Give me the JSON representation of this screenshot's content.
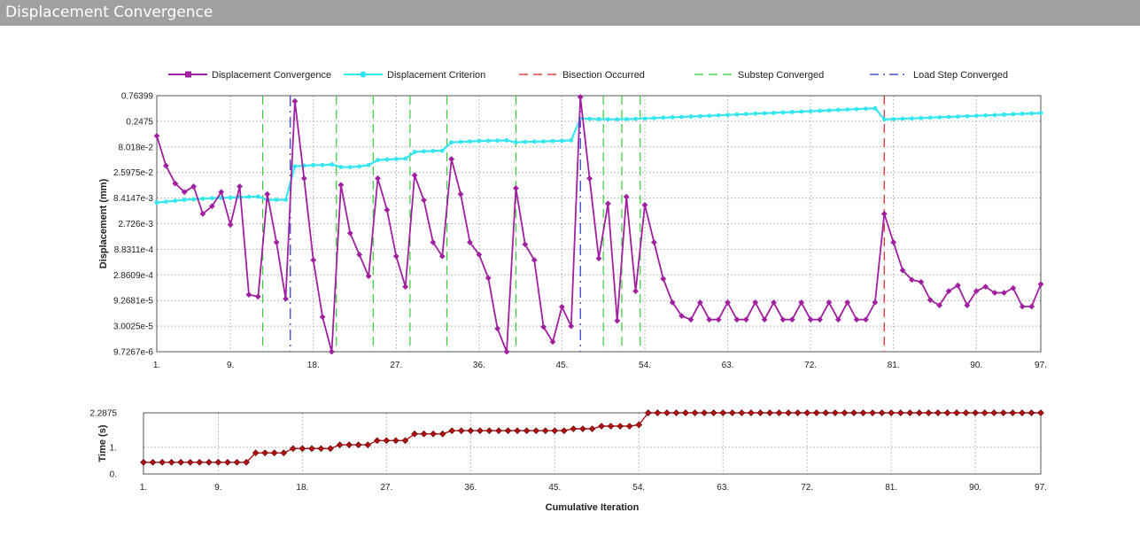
{
  "window": {
    "title": "Displacement Convergence"
  },
  "colors": {
    "convergence": "#a020a0",
    "criterion": "#33e6f0",
    "bisection": "#dd2222",
    "substep": "#33cc33",
    "loadstep": "#2233cc",
    "time": "#b01010"
  },
  "chart_data": [
    {
      "type": "line",
      "ylabel": "Displacement (mm)",
      "yscale": "log",
      "ylim": [
        9.7267e-06,
        0.76399
      ],
      "xlim": [
        1,
        97
      ],
      "yticks": [
        0.76399,
        0.2475,
        0.08018,
        0.025975,
        0.0084147,
        0.002726,
        0.00088311,
        0.00028609,
        9.2681e-05,
        3.0025e-05,
        9.7267e-06
      ],
      "ytick_labels": [
        "0.76399",
        "0.2475",
        "8.018e-2",
        "2.5975e-2",
        "8.4147e-3",
        "2.726e-3",
        "8.8311e-4",
        "2.8609e-4",
        "9.2681e-5",
        "3.0025e-5",
        "9.7267e-6"
      ],
      "xticks": [
        1,
        9,
        18,
        27,
        36,
        45,
        54,
        63,
        72,
        81,
        90,
        97
      ],
      "xtick_labels": [
        "1.",
        "9.",
        "18.",
        "27.",
        "36.",
        "45.",
        "54.",
        "63.",
        "72.",
        "81.",
        "90.",
        "97."
      ],
      "grid": true,
      "legend_position": "top",
      "legend": [
        "Displacement Convergence",
        "Displacement Criterion",
        "Bisection Occurred",
        "Substep Converged",
        "Load Step Converged"
      ],
      "series": [
        {
          "name": "Displacement Convergence",
          "x": [
            1,
            2,
            3,
            4,
            5,
            6,
            7,
            8,
            9,
            10,
            11,
            12,
            13,
            14,
            15,
            16,
            17,
            18,
            19,
            20,
            21,
            22,
            23,
            24,
            25,
            26,
            27,
            28,
            29,
            30,
            31,
            32,
            33,
            34,
            35,
            36,
            37,
            38,
            39,
            40,
            41,
            42,
            43,
            44,
            45,
            46,
            47,
            48,
            49,
            50,
            51,
            52,
            53,
            54,
            55,
            56,
            57,
            58,
            59,
            60,
            61,
            62,
            63,
            64,
            65,
            66,
            67,
            68,
            69,
            70,
            71,
            72,
            73,
            74,
            75,
            76,
            77,
            78,
            79,
            80,
            81,
            82,
            83,
            84,
            85,
            86,
            87,
            88,
            89,
            90,
            91,
            92,
            93,
            94,
            95,
            96,
            97
          ],
          "y": [
            0.13,
            0.035,
            0.016,
            0.011,
            0.014,
            0.0042,
            0.0059,
            0.011,
            0.0026,
            0.014,
            0.00012,
            0.00011,
            0.01,
            0.0012,
            0.0001,
            0.6,
            0.02,
            0.00055,
            4.5e-05,
            9.7e-06,
            0.015,
            0.0018,
            0.0007,
            0.00027,
            0.02,
            0.005,
            0.00065,
            0.00017,
            0.023,
            0.0077,
            0.0012,
            0.00065,
            0.047,
            0.01,
            0.0012,
            0.0007,
            0.00025,
            2.7e-05,
            9.7e-06,
            0.013,
            0.0011,
            0.00055,
            2.9e-05,
            1.5e-05,
            7e-05,
            3e-05,
            0.72,
            0.02,
            0.00059,
            0.0066,
            3.8e-05,
            0.0089,
            0.00014,
            0.0062,
            0.0012,
            0.00024,
            8.5e-05,
            4.7e-05,
            4e-05,
            8.5e-05,
            4e-05,
            4e-05,
            8.5e-05,
            4e-05,
            4e-05,
            8.5e-05,
            4e-05,
            8.5e-05,
            4e-05,
            4e-05,
            8.5e-05,
            4e-05,
            4e-05,
            8.5e-05,
            4e-05,
            8.5e-05,
            4e-05,
            4e-05,
            8.5e-05,
            0.0042,
            0.0012,
            0.00035,
            0.00023,
            0.00021,
            9.5e-05,
            7.5e-05,
            0.00014,
            0.00018,
            7.5e-05,
            0.00014,
            0.00017,
            0.00013,
            0.00013,
            0.00016,
            7.1e-05,
            7.1e-05,
            0.00019
          ]
        },
        {
          "name": "Displacement Criterion",
          "x": [
            1,
            2,
            3,
            4,
            5,
            6,
            7,
            8,
            9,
            10,
            11,
            12,
            13,
            14,
            15,
            16,
            17,
            18,
            19,
            20,
            21,
            22,
            23,
            24,
            25,
            26,
            27,
            28,
            29,
            30,
            31,
            32,
            33,
            34,
            35,
            36,
            37,
            38,
            39,
            40,
            41,
            42,
            43,
            44,
            45,
            46,
            47,
            48,
            49,
            50,
            51,
            52,
            53,
            54,
            55,
            56,
            57,
            58,
            59,
            60,
            61,
            62,
            63,
            64,
            65,
            66,
            67,
            68,
            69,
            70,
            71,
            72,
            73,
            74,
            75,
            76,
            77,
            78,
            79,
            80,
            81,
            82,
            83,
            84,
            85,
            86,
            87,
            88,
            89,
            90,
            91,
            92,
            93,
            94,
            95,
            96,
            97
          ],
          "y": [
            0.0069,
            0.0072,
            0.0075,
            0.0078,
            0.008,
            0.0082,
            0.0084,
            0.0085,
            0.0086,
            0.0088,
            0.0089,
            0.009,
            0.0078,
            0.0078,
            0.0078,
            0.034,
            0.035,
            0.036,
            0.036,
            0.037,
            0.033,
            0.033,
            0.034,
            0.036,
            0.045,
            0.046,
            0.047,
            0.048,
            0.064,
            0.066,
            0.067,
            0.068,
            0.098,
            0.1,
            0.102,
            0.104,
            0.105,
            0.106,
            0.107,
            0.098,
            0.1,
            0.101,
            0.102,
            0.104,
            0.105,
            0.107,
            0.28,
            0.275,
            0.272,
            0.27,
            0.27,
            0.272,
            0.275,
            0.28,
            0.285,
            0.29,
            0.295,
            0.3,
            0.305,
            0.31,
            0.316,
            0.322,
            0.328,
            0.334,
            0.34,
            0.346,
            0.352,
            0.358,
            0.365,
            0.372,
            0.379,
            0.386,
            0.393,
            0.4,
            0.408,
            0.415,
            0.423,
            0.43,
            0.437,
            0.27,
            0.273,
            0.277,
            0.281,
            0.285,
            0.29,
            0.295,
            0.3,
            0.305,
            0.31,
            0.315,
            0.32,
            0.326,
            0.332,
            0.338,
            0.344,
            0.35,
            0.356
          ]
        }
      ],
      "markers": {
        "Bisection Occurred": [
          80
        ],
        "Substep Converged": [
          12.5,
          20.5,
          24.5,
          28.5,
          32.5,
          40,
          49.5,
          51.5,
          53.5
        ],
        "Load Step Converged": [
          15.5,
          47
        ]
      }
    },
    {
      "type": "line",
      "ylabel": "Time (s)",
      "xlabel": "Cumulative Iteration",
      "ylim": [
        0,
        2.2875
      ],
      "xlim": [
        1,
        97
      ],
      "yticks": [
        2.2875,
        1,
        0
      ],
      "ytick_labels": [
        "2.2875",
        "1.",
        "0."
      ],
      "xticks": [
        1,
        9,
        18,
        27,
        36,
        45,
        54,
        63,
        72,
        81,
        90,
        97
      ],
      "xtick_labels": [
        "1.",
        "9.",
        "18.",
        "27.",
        "36.",
        "45.",
        "54.",
        "63.",
        "72.",
        "81.",
        "90.",
        "97."
      ],
      "grid": true,
      "series": [
        {
          "x": [
            1,
            2,
            3,
            4,
            5,
            6,
            7,
            8,
            9,
            10,
            11,
            12,
            13,
            14,
            15,
            16,
            17,
            18,
            19,
            20,
            21,
            22,
            23,
            24,
            25,
            26,
            27,
            28,
            29,
            30,
            31,
            32,
            33,
            34,
            35,
            36,
            37,
            38,
            39,
            40,
            41,
            42,
            43,
            44,
            45,
            46,
            47,
            48,
            49,
            50,
            51,
            52,
            53,
            54,
            55,
            56,
            57,
            58,
            59,
            60,
            61,
            62,
            63,
            64,
            65,
            66,
            67,
            68,
            69,
            70,
            71,
            72,
            73,
            74,
            75,
            76,
            77,
            78,
            79,
            80,
            81,
            82,
            83,
            84,
            85,
            86,
            87,
            88,
            89,
            90,
            91,
            92,
            93,
            94,
            95,
            96,
            97
          ],
          "y": [
            0.4375,
            0.4375,
            0.4375,
            0.4375,
            0.4375,
            0.4375,
            0.4375,
            0.4375,
            0.4375,
            0.4375,
            0.4375,
            0.4375,
            0.79,
            0.79,
            0.79,
            0.79,
            0.95,
            0.95,
            0.95,
            0.95,
            0.95,
            1.09,
            1.09,
            1.09,
            1.09,
            1.25,
            1.25,
            1.25,
            1.25,
            1.5,
            1.5,
            1.5,
            1.5,
            1.62,
            1.62,
            1.62,
            1.62,
            1.62,
            1.62,
            1.62,
            1.62,
            1.62,
            1.62,
            1.62,
            1.62,
            1.62,
            1.69,
            1.69,
            1.69,
            1.79,
            1.79,
            1.79,
            1.79,
            1.84,
            2.2875,
            2.2875,
            2.2875,
            2.2875,
            2.2875,
            2.2875,
            2.2875,
            2.2875,
            2.2875,
            2.2875,
            2.2875,
            2.2875,
            2.2875,
            2.2875,
            2.2875,
            2.2875,
            2.2875,
            2.2875,
            2.2875,
            2.2875,
            2.2875,
            2.2875,
            2.2875,
            2.2875,
            2.2875,
            2.2875,
            2.2875,
            2.2875,
            2.2875,
            2.2875,
            2.2875,
            2.2875,
            2.2875,
            2.2875,
            2.2875,
            2.2875,
            2.2875,
            2.2875,
            2.2875,
            2.2875,
            2.2875,
            2.2875,
            2.2875
          ]
        }
      ]
    }
  ]
}
